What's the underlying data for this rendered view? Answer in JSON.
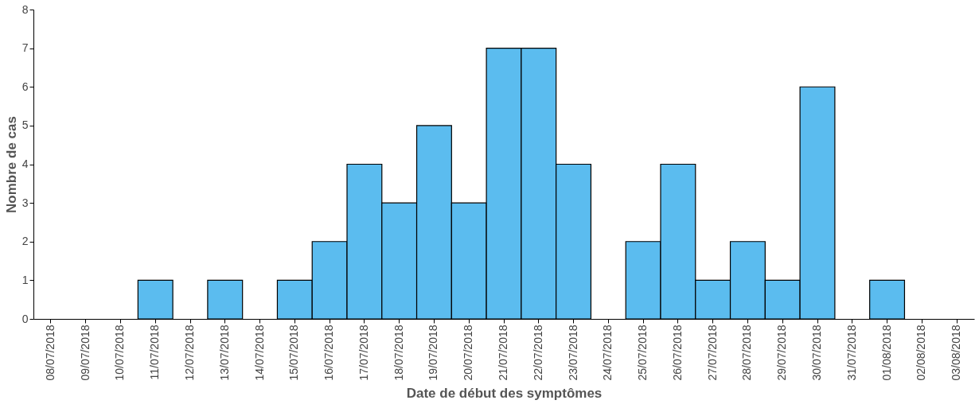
{
  "chart_data": {
    "type": "bar",
    "xlabel": "Date de début des symptômes",
    "ylabel": "Nombre de cas",
    "categories": [
      "08/07/2018",
      "09/07/2018",
      "10/07/2018",
      "11/07/2018",
      "12/07/2018",
      "13/07/2018",
      "14/07/2018",
      "15/07/2018",
      "16/07/2018",
      "17/07/2018",
      "18/07/2018",
      "19/07/2018",
      "20/07/2018",
      "21/07/2018",
      "22/07/2018",
      "23/07/2018",
      "24/07/2018",
      "25/07/2018",
      "26/07/2018",
      "27/07/2018",
      "28/07/2018",
      "29/07/2018",
      "30/07/2018",
      "31/07/2018",
      "01/08/2018",
      "02/08/2018",
      "03/08/2018"
    ],
    "values": [
      0,
      0,
      0,
      1,
      0,
      1,
      0,
      1,
      2,
      4,
      3,
      5,
      3,
      7,
      7,
      4,
      0,
      2,
      4,
      1,
      2,
      1,
      6,
      0,
      1,
      0,
      0
    ],
    "color": "#5bbcef",
    "ylim": [
      0,
      8
    ],
    "yticks": [
      0,
      1,
      2,
      3,
      4,
      5,
      6,
      7,
      8
    ],
    "grid": false
  }
}
